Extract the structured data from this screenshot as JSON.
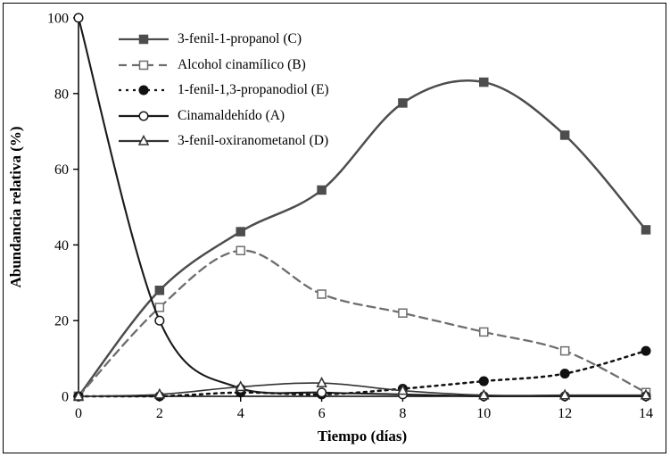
{
  "chart_data": {
    "type": "line",
    "title": "",
    "xlabel": "Tiempo (días)",
    "ylabel": "Abundancia relativa (%)",
    "xlim": [
      0,
      14
    ],
    "ylim": [
      0,
      100
    ],
    "xticks": [
      0,
      2,
      4,
      6,
      8,
      10,
      12,
      14
    ],
    "yticks": [
      0,
      20,
      40,
      60,
      80,
      100
    ],
    "grid": false,
    "legend_position": "upper-left-inside",
    "x": [
      0,
      2,
      4,
      6,
      8,
      10,
      12,
      14
    ],
    "series": [
      {
        "name": "3-fenil-1-propanol (C)",
        "marker": "filled-square",
        "line": "solid",
        "color": "#4d4d4d",
        "width": 2.5,
        "values": [
          0,
          28,
          43.5,
          54.5,
          77.5,
          83,
          69,
          44
        ]
      },
      {
        "name": "Alcohol cinamílico (B)",
        "marker": "open-square",
        "line": "dashed",
        "color": "#6e6e6e",
        "width": 2.3,
        "values": [
          0,
          23.5,
          38.5,
          27,
          22,
          17,
          12,
          1
        ]
      },
      {
        "name": "1-fenil-1,3-propanodiol (E)",
        "marker": "filled-circle",
        "line": "dotted",
        "color": "#111111",
        "width": 2.5,
        "values": [
          0,
          0,
          1,
          0.5,
          2,
          4,
          6,
          12
        ]
      },
      {
        "name": "Cinamaldehído (A)",
        "marker": "open-circle",
        "line": "solid",
        "color": "#1a1a1a",
        "width": 2.1,
        "values": [
          100,
          20,
          2,
          1,
          0.5,
          0,
          0,
          0
        ]
      },
      {
        "name": "3-fenil-oxiranometanol (D)",
        "marker": "open-triangle",
        "line": "solid",
        "color": "#333333",
        "width": 1.6,
        "values": [
          0,
          0.5,
          2.5,
          3.5,
          1.5,
          0.3,
          0.3,
          0.3
        ]
      }
    ]
  }
}
